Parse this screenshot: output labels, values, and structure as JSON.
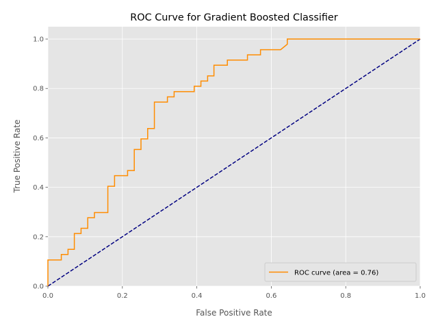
{
  "chart_data": {
    "type": "line",
    "title": "ROC Curve for Gradient Boosted Classifier",
    "xlabel": "False Positive Rate",
    "ylabel": "True Positive Rate",
    "xlim": [
      0.0,
      1.0
    ],
    "ylim": [
      0.0,
      1.05
    ],
    "xticks": [
      0.0,
      0.2,
      0.4,
      0.6,
      0.8,
      1.0
    ],
    "yticks": [
      0.0,
      0.2,
      0.4,
      0.6,
      0.8,
      1.0
    ],
    "xtick_labels": [
      "0.0",
      "0.2",
      "0.4",
      "0.6",
      "0.8",
      "1.0"
    ],
    "ytick_labels": [
      "0.0",
      "0.2",
      "0.4",
      "0.6",
      "0.8",
      "1.0"
    ],
    "grid": true,
    "legend_position": "lower right",
    "series": [
      {
        "name": "ROC curve (area = 0.76)",
        "color": "#ff8c00",
        "style": "solid-step",
        "points": [
          [
            0.0,
            0.0
          ],
          [
            0.0,
            0.106
          ],
          [
            0.036,
            0.106
          ],
          [
            0.036,
            0.128
          ],
          [
            0.054,
            0.128
          ],
          [
            0.054,
            0.149
          ],
          [
            0.071,
            0.149
          ],
          [
            0.071,
            0.213
          ],
          [
            0.089,
            0.213
          ],
          [
            0.089,
            0.234
          ],
          [
            0.107,
            0.234
          ],
          [
            0.107,
            0.277
          ],
          [
            0.125,
            0.277
          ],
          [
            0.125,
            0.298
          ],
          [
            0.161,
            0.298
          ],
          [
            0.161,
            0.404
          ],
          [
            0.179,
            0.404
          ],
          [
            0.179,
            0.447
          ],
          [
            0.214,
            0.447
          ],
          [
            0.214,
            0.468
          ],
          [
            0.232,
            0.468
          ],
          [
            0.232,
            0.553
          ],
          [
            0.25,
            0.553
          ],
          [
            0.25,
            0.596
          ],
          [
            0.268,
            0.596
          ],
          [
            0.268,
            0.638
          ],
          [
            0.286,
            0.638
          ],
          [
            0.286,
            0.745
          ],
          [
            0.321,
            0.745
          ],
          [
            0.321,
            0.766
          ],
          [
            0.339,
            0.766
          ],
          [
            0.339,
            0.787
          ],
          [
            0.393,
            0.787
          ],
          [
            0.393,
            0.809
          ],
          [
            0.411,
            0.809
          ],
          [
            0.411,
            0.83
          ],
          [
            0.429,
            0.83
          ],
          [
            0.429,
            0.851
          ],
          [
            0.446,
            0.851
          ],
          [
            0.446,
            0.894
          ],
          [
            0.482,
            0.894
          ],
          [
            0.482,
            0.915
          ],
          [
            0.536,
            0.915
          ],
          [
            0.536,
            0.936
          ],
          [
            0.571,
            0.936
          ],
          [
            0.571,
            0.957
          ],
          [
            0.625,
            0.957
          ],
          [
            0.643,
            0.979
          ],
          [
            0.643,
            1.0
          ],
          [
            1.0,
            1.0
          ]
        ]
      },
      {
        "name": "",
        "color": "#000080",
        "style": "dashed",
        "points": [
          [
            0.0,
            0.0
          ],
          [
            1.0,
            1.0
          ]
        ]
      }
    ],
    "legend": [
      {
        "label": "ROC curve (area = 0.76)",
        "color": "#ff8c00"
      }
    ]
  },
  "style": {
    "plot_background": "#e5e5e5",
    "grid_color": "#ffffff",
    "tick_text_color": "#555555"
  }
}
